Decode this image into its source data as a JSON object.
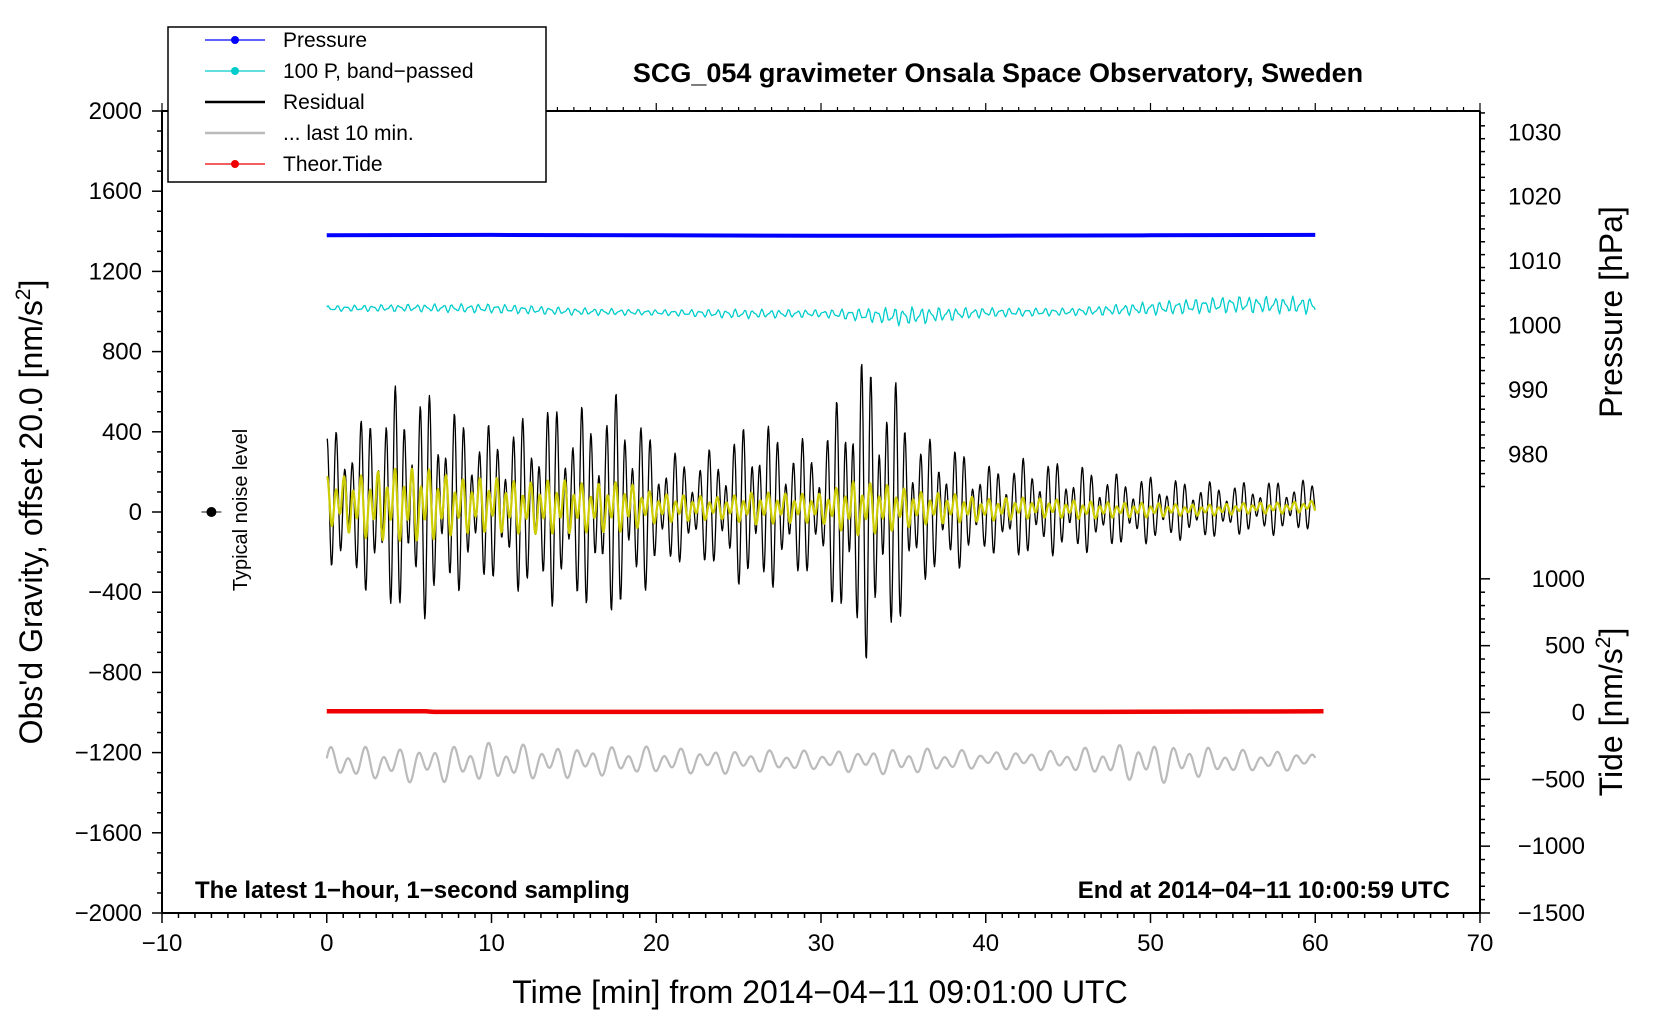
{
  "chart_data": {
    "type": "line",
    "title": "SCG_054 gravimeter Onsala Space Observatory, Sweden",
    "xlabel": "Time [min] from 2014−04−11 09:01:00 UTC",
    "ylabel_left_main": "Obs'd Gravity, offset 20.0 [nm/s",
    "ylabel_left_sup": "2",
    "ylabel_left_end": "]",
    "ylabel_right_pressure": "Pressure [hPa]",
    "ylabel_right_tide_main": "Tide [nm/s",
    "ylabel_right_tide_sup": "2",
    "ylabel_right_tide_end": "]",
    "xlim": [
      -10,
      70
    ],
    "ylim_left": [
      -2000,
      2000
    ],
    "x_ticks": [
      "−10",
      "0",
      "10",
      "20",
      "30",
      "40",
      "50",
      "60",
      "70"
    ],
    "x_tick_values": [
      -10,
      0,
      10,
      20,
      30,
      40,
      50,
      60,
      70
    ],
    "y_ticks_left": [
      "2000",
      "1600",
      "1200",
      "800",
      "400",
      "0",
      "−400",
      "−800",
      "−1200",
      "−1600",
      "−2000"
    ],
    "y_tick_values_left": [
      2000,
      1600,
      1200,
      800,
      400,
      0,
      -400,
      -800,
      -1200,
      -1600,
      -2000
    ],
    "pressure_ticks": [
      "1030",
      "1020",
      "1010",
      "1000",
      "990",
      "980"
    ],
    "pressure_tick_values": [
      1030,
      1020,
      1010,
      1000,
      990,
      980
    ],
    "pressure_axis": {
      "value_at_left_1380": 1014,
      "hpa_per_left_unit": 0.03113
    },
    "tide_ticks": [
      "1000",
      "500",
      "0",
      "−500",
      "−1000",
      "−1500"
    ],
    "tide_tick_values": [
      1000,
      500,
      0,
      -500,
      -1000,
      -1500
    ],
    "tide_axis": {
      "value_at_left_0": 1500,
      "tide_per_left_unit": 1.5
    },
    "legend": [
      {
        "label": "Pressure",
        "color": "#0000ff",
        "marker": true
      },
      {
        "label": "100 P, band−passed",
        "color": "#00cccc",
        "marker": true
      },
      {
        "label": "Residual",
        "color": "#000000",
        "marker": false
      },
      {
        "label": "... last 10 min.",
        "color": "#bbbbbb",
        "marker": false
      },
      {
        "label": "Theor.Tide",
        "color": "#ee0000",
        "marker": true
      }
    ],
    "footer_left": "The latest 1−hour, 1−second sampling",
    "footer_right": "End at 2014−04−11 10:00:59 UTC",
    "noise_level_label": "Typical noise level",
    "noise_level_point": {
      "x": -7,
      "y": 0,
      "err": 40
    },
    "series": [
      {
        "name": "Pressure",
        "color": "#0000ff",
        "x": [
          0,
          10,
          20,
          30,
          40,
          50,
          60
        ],
        "values": [
          1380,
          1382,
          1380,
          1378,
          1378,
          1380,
          1382
        ]
      },
      {
        "name": "100 P, band−passed",
        "color": "#00cccc",
        "x": [
          0,
          5,
          10,
          15,
          20,
          25,
          30,
          35,
          40,
          45,
          50,
          55,
          60
        ],
        "values": [
          1015,
          1018,
          1015,
          1000,
          995,
          988,
          990,
          975,
          995,
          998,
          1015,
          1035,
          1030
        ],
        "envelope": [
          15,
          20,
          25,
          20,
          15,
          25,
          20,
          50,
          25,
          20,
          35,
          45,
          45
        ]
      },
      {
        "name": "Residual",
        "color": "#000000",
        "x": [
          0,
          2,
          4,
          6,
          8,
          10,
          12,
          14,
          16,
          18,
          20,
          22,
          24,
          26,
          28,
          30,
          32,
          34,
          36,
          38,
          40,
          42,
          44,
          46,
          48,
          50,
          52,
          54,
          56,
          58,
          60
        ],
        "values": [
          80,
          40,
          60,
          40,
          50,
          40,
          30,
          40,
          20,
          40,
          10,
          20,
          20,
          30,
          20,
          20,
          20,
          30,
          10,
          20,
          10,
          20,
          20,
          10,
          10,
          10,
          10,
          10,
          20,
          20,
          40
        ],
        "envelope": [
          330,
          420,
          570,
          580,
          450,
          390,
          450,
          520,
          500,
          580,
          330,
          250,
          320,
          460,
          360,
          330,
          790,
          720,
          370,
          320,
          220,
          250,
          240,
          220,
          180,
          170,
          150,
          140,
          130,
          140,
          120
        ]
      },
      {
        "name": "Residual (yellow filtered)",
        "color": "#cccc00",
        "x": [
          0,
          2,
          4,
          6,
          8,
          10,
          12,
          14,
          16,
          18,
          20,
          22,
          24,
          26,
          28,
          30,
          32,
          34,
          36,
          38,
          40,
          42,
          44,
          46,
          48,
          50,
          52,
          54,
          56,
          58,
          60
        ],
        "values": [
          60,
          30,
          40,
          40,
          30,
          40,
          20,
          30,
          20,
          30,
          20,
          20,
          20,
          20,
          20,
          20,
          20,
          20,
          20,
          20,
          10,
          20,
          20,
          10,
          10,
          10,
          10,
          10,
          20,
          20,
          30
        ],
        "envelope": [
          130,
          170,
          200,
          200,
          150,
          150,
          140,
          150,
          130,
          140,
          80,
          70,
          60,
          90,
          80,
          80,
          150,
          130,
          90,
          80,
          60,
          60,
          50,
          50,
          40,
          40,
          30,
          30,
          30,
          30,
          30
        ]
      },
      {
        "name": "... last 10 min.",
        "color": "#bbbbbb",
        "x": [
          0,
          5,
          10,
          15,
          20,
          25,
          30,
          35,
          40,
          45,
          50,
          55,
          60
        ],
        "values": [
          -1250,
          -1260,
          -1250,
          -1245,
          -1240,
          -1245,
          -1240,
          -1245,
          -1235,
          -1240,
          -1250,
          -1245,
          -1240
        ],
        "envelope": [
          80,
          90,
          100,
          80,
          70,
          60,
          50,
          70,
          45,
          55,
          110,
          60,
          45
        ]
      },
      {
        "name": "Theor.Tide",
        "color": "#ee0000",
        "x": [
          0,
          6,
          6.5,
          15.5,
          47,
          56,
          60.5
        ],
        "values": [
          -994,
          -994,
          -997,
          -997,
          -997,
          -995,
          -994
        ]
      }
    ]
  }
}
